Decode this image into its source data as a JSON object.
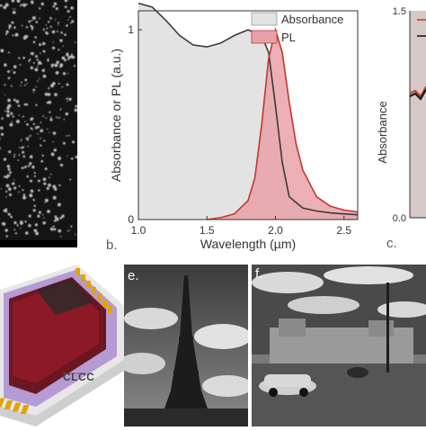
{
  "panels": {
    "b": {
      "letter": "b."
    },
    "c": {
      "letter": "c."
    },
    "e": {
      "letter": "e."
    },
    "f": {
      "letter": "f."
    }
  },
  "device_label": "CLCC",
  "chart_data": [
    {
      "panel": "b",
      "type": "area",
      "xlabel": "Wavelength (µm)",
      "ylabel": "Absorbance or PL (a.u.)",
      "xlim": [
        1.0,
        2.6
      ],
      "ylim": [
        0,
        1.1
      ],
      "xticks": [
        "1.0",
        "1.5",
        "2.0",
        "2.5"
      ],
      "yticks": [
        "0",
        "1"
      ],
      "legend_position": "top-right",
      "grid": false,
      "series": [
        {
          "name": "Absorbance",
          "color": "#3a3a3a",
          "fill": "#e3e3e3",
          "x": [
            1.0,
            1.1,
            1.2,
            1.3,
            1.4,
            1.5,
            1.6,
            1.7,
            1.8,
            1.9,
            1.95,
            2.0,
            2.05,
            2.1,
            2.2,
            2.3,
            2.4,
            2.5,
            2.6
          ],
          "y": [
            1.14,
            1.12,
            1.05,
            0.97,
            0.92,
            0.91,
            0.93,
            0.97,
            1.0,
            0.97,
            0.88,
            0.6,
            0.3,
            0.12,
            0.06,
            0.045,
            0.035,
            0.03,
            0.025
          ]
        },
        {
          "name": "PL",
          "color": "#c0392b",
          "fill": "#e9a1a8",
          "x": [
            1.5,
            1.6,
            1.7,
            1.8,
            1.85,
            1.9,
            1.95,
            2.0,
            2.05,
            2.1,
            2.15,
            2.2,
            2.3,
            2.4,
            2.5,
            2.6
          ],
          "y": [
            0.0,
            0.01,
            0.03,
            0.1,
            0.22,
            0.5,
            0.85,
            1.0,
            0.88,
            0.62,
            0.4,
            0.26,
            0.12,
            0.07,
            0.05,
            0.04
          ]
        }
      ]
    },
    {
      "panel": "c",
      "type": "line",
      "ylabel": "Absorbance",
      "yticks": [
        "0.0",
        "1.5"
      ],
      "series": [
        {
          "color": "#c0392b",
          "values": [
            0.9,
            0.92,
            0.88,
            0.95
          ]
        },
        {
          "color": "#111111",
          "values": [
            0.88,
            0.9,
            0.86,
            0.93
          ]
        }
      ]
    }
  ]
}
